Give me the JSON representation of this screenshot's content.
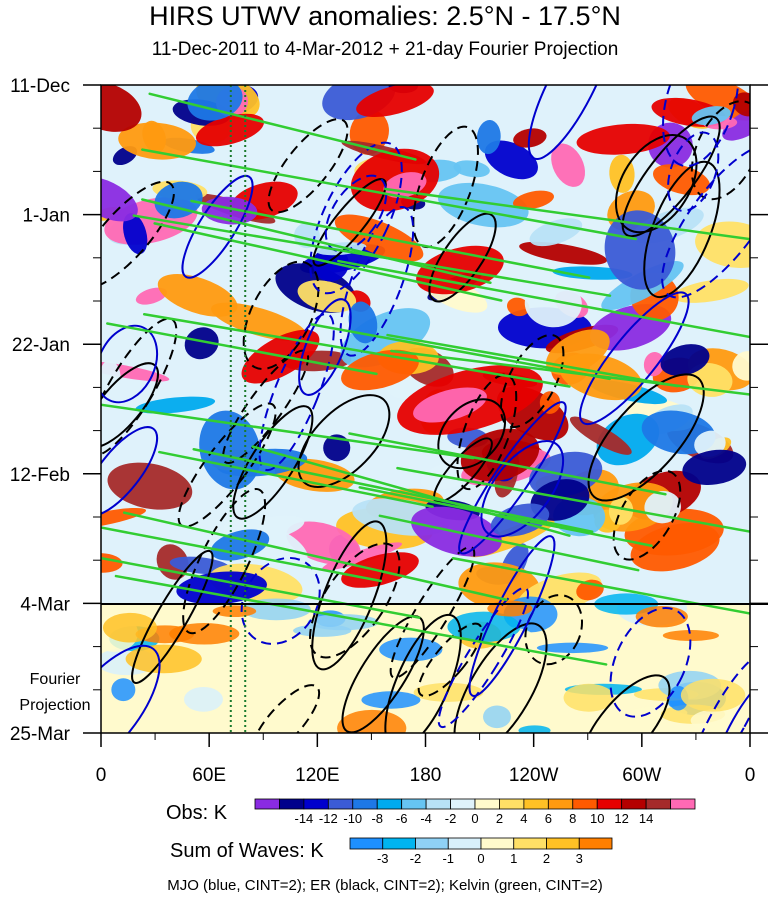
{
  "chart_data": {
    "type": "heatmap",
    "title": "HIRS UTWV anomalies: 2.5°N - 17.5°N",
    "subtitle": "11-Dec-2011 to 4-Mar-2012 + 21-day Fourier Projection",
    "y_ticks": [
      "11-Dec",
      "1-Jan",
      "22-Jan",
      "12-Feb",
      "4-Mar",
      "25-Mar"
    ],
    "x_ticks": [
      "0",
      "60E",
      "120E",
      "180",
      "120W",
      "60W",
      "0"
    ],
    "x_range_deg_east": [
      0,
      360
    ],
    "projection_start": "4-Mar",
    "projection_label": [
      "Fourier",
      "Projection"
    ],
    "reference_longitudes_deg_east": [
      72,
      80
    ],
    "obs_colorbar": {
      "title": "Obs: K",
      "labels": [
        "-14",
        "-12",
        "-10",
        "-8",
        "-6",
        "-4",
        "-2",
        "0",
        "2",
        "4",
        "6",
        "8",
        "10",
        "12",
        "14"
      ],
      "colors": [
        "#8a2be2",
        "#00008b",
        "#0000cd",
        "#3b5bd6",
        "#1e78e6",
        "#00aaee",
        "#66c4f2",
        "#b8e2f7",
        "#dff2fb",
        "#fffacd",
        "#ffe066",
        "#ffc125",
        "#ff9a10",
        "#ff5a00",
        "#e60000",
        "#b40000",
        "#a52a2a",
        "#ff69b4"
      ]
    },
    "waves_colorbar": {
      "title": "Sum of Waves: K",
      "labels": [
        "-3",
        "-2",
        "-1",
        "0",
        "1",
        "2",
        "3"
      ],
      "colors": [
        "#1e90ff",
        "#00b4f0",
        "#8fd1f5",
        "#d8f0fb",
        "#fffacd",
        "#ffe066",
        "#ffc125",
        "#ff7f00"
      ]
    },
    "contours": [
      {
        "name": "MJO",
        "color": "#0000cd",
        "cint": 2
      },
      {
        "name": "ER",
        "color": "#000000",
        "cint": 2
      },
      {
        "name": "Kelvin",
        "color": "#32cd32",
        "cint": 2
      }
    ]
  },
  "footer": "MJO (blue, CINT=2); ER (black, CINT=2); Kelvin (green, CINT=2)"
}
